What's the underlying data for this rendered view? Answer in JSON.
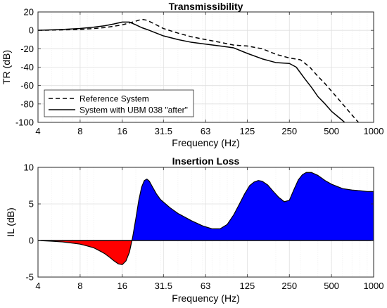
{
  "chart_data": [
    {
      "type": "line",
      "title": "Transmissibility",
      "xlabel": "Frequency (Hz)",
      "ylabel": "TR (dB)",
      "xscale": "log2",
      "xlim": [
        4,
        1000
      ],
      "ylim": [
        -100,
        20
      ],
      "xticks": [
        4,
        8,
        16,
        31.5,
        63,
        125,
        250,
        500,
        1000
      ],
      "xtick_labels": [
        "4",
        "8",
        "16",
        "31.5",
        "63",
        "125",
        "250",
        "500",
        "1000"
      ],
      "yticks": [
        20,
        0,
        -20,
        -40,
        -60,
        -80,
        -100
      ],
      "ytick_labels": [
        "20",
        "0",
        "-20",
        "-40",
        "-60",
        "-80",
        "-100"
      ],
      "grid": true,
      "legend_position": "bottom-left",
      "series": [
        {
          "name": "Reference System",
          "style": "dashed",
          "color": "#000000",
          "x": [
            4,
            6,
            8,
            10,
            12,
            14,
            16,
            18,
            20,
            22,
            24,
            28,
            31.5,
            40,
            50,
            63,
            80,
            100,
            125,
            160,
            200,
            250,
            300,
            350,
            400,
            450,
            500,
            600,
            700,
            800,
            900
          ],
          "y": [
            0,
            0.5,
            1,
            2,
            3,
            4.5,
            6,
            8,
            10,
            12,
            11,
            6,
            2,
            -3,
            -7,
            -10,
            -13,
            -16,
            -17,
            -20,
            -26,
            -30,
            -32,
            -40,
            -50,
            -58,
            -66,
            -80,
            -92,
            -102,
            -111
          ]
        },
        {
          "name": "System with UBM 038 \"after\"",
          "style": "solid",
          "color": "#000000",
          "x": [
            4,
            6,
            8,
            10,
            12,
            14,
            16,
            18,
            20,
            22,
            24,
            28,
            31.5,
            40,
            50,
            63,
            80,
            100,
            125,
            160,
            200,
            250,
            280,
            320,
            360,
            400,
            450,
            500,
            600,
            700
          ],
          "y": [
            0,
            1,
            2,
            3.5,
            5,
            7,
            9,
            9,
            6,
            3,
            1,
            -3,
            -6,
            -10,
            -13,
            -15,
            -17,
            -19,
            -25,
            -31,
            -35,
            -36,
            -40,
            -52,
            -62,
            -72,
            -80,
            -88,
            -98,
            -107
          ]
        }
      ]
    },
    {
      "type": "area",
      "title": "Insertion Loss",
      "xlabel": "Frequency (Hz)",
      "ylabel": "IL (dB)",
      "xscale": "log2",
      "xlim": [
        4,
        1000
      ],
      "ylim": [
        -5,
        10
      ],
      "xticks": [
        4,
        8,
        16,
        31.5,
        63,
        125,
        250,
        500,
        1000
      ],
      "xtick_labels": [
        "4",
        "8",
        "16",
        "31.5",
        "63",
        "125",
        "250",
        "500",
        "1000"
      ],
      "yticks": [
        10,
        5,
        0,
        -5
      ],
      "ytick_labels": [
        "10",
        "5",
        "0",
        "-5"
      ],
      "grid": true,
      "fill_colors": {
        "positive": "#0000ff",
        "negative": "#ff0000"
      },
      "series": [
        {
          "x": [
            4,
            5,
            6,
            7,
            8,
            9,
            10,
            11,
            12,
            13,
            14,
            15,
            16,
            17,
            18,
            19,
            20,
            21,
            22,
            23,
            24,
            25,
            26,
            28,
            30,
            35,
            40,
            50,
            60,
            70,
            80,
            90,
            100,
            110,
            120,
            130,
            140,
            150,
            160,
            175,
            190,
            210,
            230,
            250,
            270,
            290,
            310,
            330,
            360,
            400,
            450,
            500,
            600,
            700,
            800,
            900,
            1000
          ],
          "y": [
            0,
            -0.1,
            -0.2,
            -0.35,
            -0.5,
            -0.75,
            -1.0,
            -1.4,
            -1.8,
            -2.3,
            -2.8,
            -3.2,
            -3.3,
            -2.8,
            -1.6,
            0.5,
            3.0,
            5.5,
            7.3,
            8.2,
            8.4,
            8.1,
            7.5,
            6.4,
            5.6,
            4.5,
            3.7,
            2.7,
            2.0,
            1.6,
            1.6,
            2.2,
            3.5,
            5.0,
            6.4,
            7.5,
            8.0,
            8.2,
            8.1,
            7.6,
            6.8,
            5.9,
            5.3,
            5.5,
            7.0,
            8.3,
            9.0,
            9.3,
            9.3,
            8.9,
            8.2,
            7.7,
            7.1,
            6.9,
            6.8,
            6.7,
            6.7
          ]
        }
      ]
    }
  ],
  "colors": {
    "axis": "#262626",
    "grid": "#dfdfdf",
    "line": "#000000"
  }
}
